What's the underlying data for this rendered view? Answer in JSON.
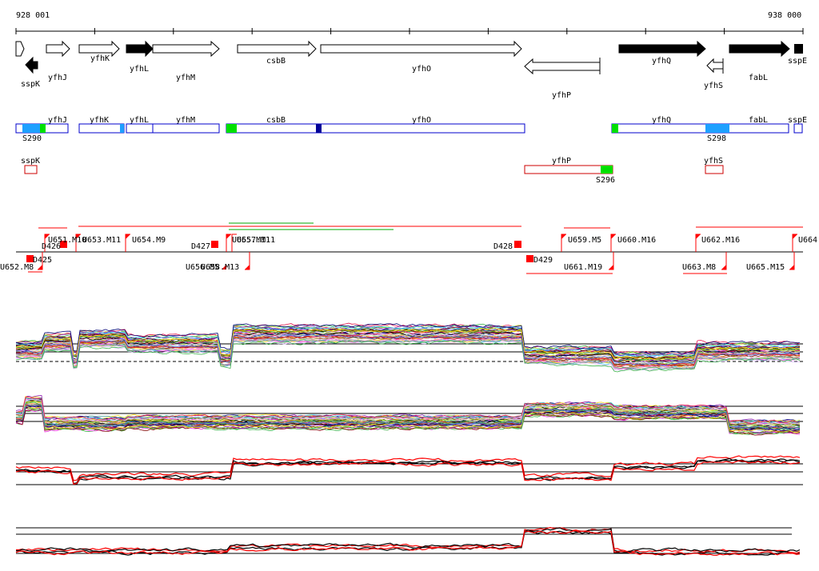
{
  "ruler": {
    "start": "928 001",
    "end": "938 000"
  },
  "genes_top": [
    {
      "label": "",
      "dir": "right",
      "fill": "white"
    },
    {
      "label": "sspK",
      "dir": "left",
      "fill": "black"
    },
    {
      "label": "yfhJ",
      "dir": "right",
      "fill": "white"
    },
    {
      "label": "yfhK",
      "dir": "right",
      "fill": "white"
    },
    {
      "label": "yfhL",
      "dir": "right",
      "fill": "black"
    },
    {
      "label": "yfhM",
      "dir": "right",
      "fill": "white"
    },
    {
      "label": "csbB",
      "dir": "right",
      "fill": "white"
    },
    {
      "label": "yfhO",
      "dir": "right",
      "fill": "white"
    },
    {
      "label": "yfhP",
      "dir": "left",
      "fill": "white"
    },
    {
      "label": "yfhQ",
      "dir": "right",
      "fill": "black"
    },
    {
      "label": "yfhS",
      "dir": "left",
      "fill": "white"
    },
    {
      "label": "fabL",
      "dir": "right",
      "fill": "black"
    },
    {
      "label": "sspE",
      "dir": "right",
      "fill": "black"
    }
  ],
  "transcripts_forward": [
    "yfhJ",
    "yfhK",
    "yfhL",
    "yfhM",
    "csbB",
    "yfhO",
    "yfhQ",
    "fabL",
    "sspE"
  ],
  "transcripts_forward_sites": [
    "S290",
    "S298"
  ],
  "transcripts_reverse": [
    "sspK",
    "yfhP",
    "yfhS"
  ],
  "transcripts_reverse_sites": [
    "S296"
  ],
  "segments_upper": [
    "U651.M10",
    "U653.M11",
    "U654.M9",
    "D427",
    "U655.M11",
    "U657.M11",
    "D428",
    "U659.M5",
    "U660.M16",
    "U662.M16",
    "U664",
    "D426"
  ],
  "segments_lower": [
    "U652.M8",
    "D425",
    "U656.M5",
    "U658.M13",
    "D429",
    "U661.M19",
    "U663.M8",
    "U665.M15"
  ],
  "colors": {
    "box_blue": "#0000cc",
    "box_red": "#cc0000",
    "site_cyan": "#1ea0ff",
    "site_green": "#00e000",
    "site_navy": "#000099",
    "segment_red": "#ff0000",
    "transcript_green": "#00aa00"
  }
}
